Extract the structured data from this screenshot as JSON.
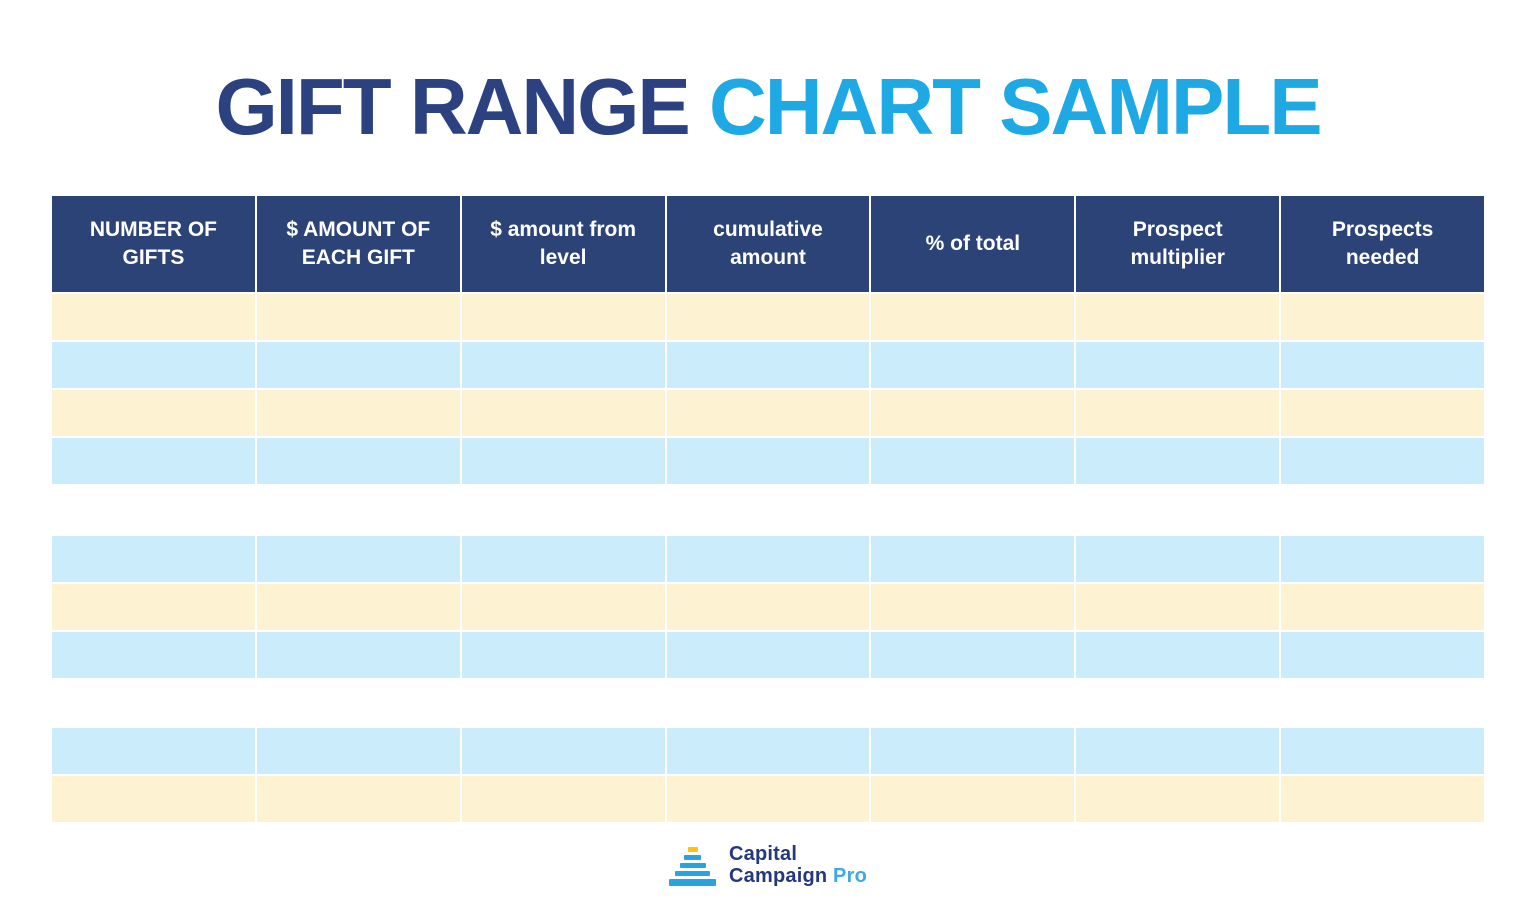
{
  "title": {
    "part_navy": "GIFT RANGE",
    "part_blue": "CHART SAMPLE"
  },
  "table": {
    "headers": [
      "NUMBER OF GIFTS",
      "$ AMOUNT OF EACH GIFT",
      "$ amount from level",
      "cumulative amount",
      "% of total",
      "Prospect multiplier",
      "Prospects needed"
    ],
    "sections": [
      {
        "row_colors": [
          "cream",
          "blue",
          "cream",
          "blue"
        ]
      },
      {
        "row_colors": [
          "blue",
          "cream",
          "blue"
        ]
      },
      {
        "row_colors": [
          "blue",
          "cream"
        ]
      }
    ],
    "cell_value": ""
  },
  "footer": {
    "logo_line1": "Capital",
    "logo_line2": "Campaign",
    "logo_suffix": "Pro"
  },
  "colors": {
    "title_navy": "#2B4180",
    "title_blue": "#1FA9E4",
    "header_bg": "#2B4377",
    "header_text": "#FFFFFF",
    "row_cream": "#FDF3D2",
    "row_blue": "#CBEDFB",
    "logo_navy": "#24397B",
    "logo_blue": "#3FA9E1",
    "pyramid_yellow": "#FFC20E",
    "pyramid_blue": "#29A3DD",
    "page_bg": "#FFFFFF"
  }
}
